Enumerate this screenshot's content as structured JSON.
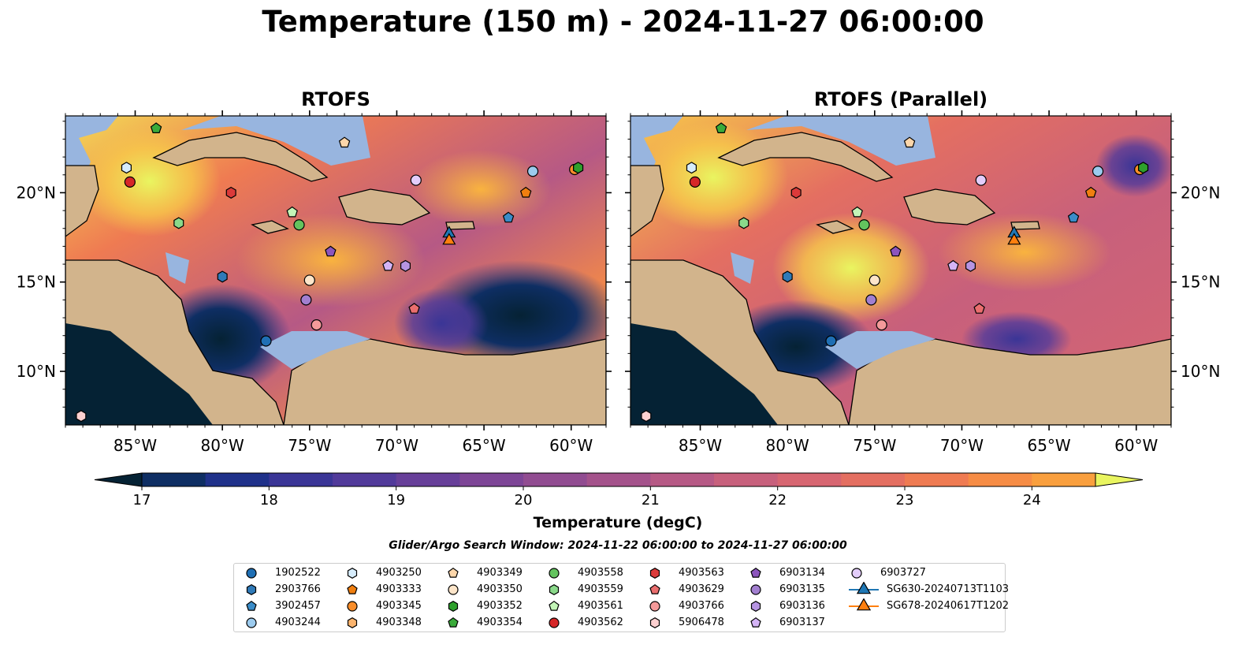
{
  "title": "Temperature (150 m) - 2024-11-27 06:00:00",
  "panels": [
    {
      "title": "RTOFS"
    },
    {
      "title": "RTOFS (Parallel)"
    }
  ],
  "map": {
    "lon_range": [
      -89,
      -58
    ],
    "lat_range": [
      7,
      24.3
    ],
    "lon_ticks": [
      "85°W",
      "80°W",
      "75°W",
      "70°W",
      "65°W",
      "60°W"
    ],
    "lat_ticks": [
      "20°N",
      "15°N",
      "10°N"
    ],
    "colors": {
      "land": "#d2b48c",
      "shelf": "#98b5df",
      "deep_cold": "#062235",
      "coast": "#000000"
    }
  },
  "colorbar": {
    "label": "Temperature (degC)",
    "ticks": [
      "17",
      "18",
      "19",
      "20",
      "21",
      "22",
      "23",
      "24"
    ],
    "range": [
      17,
      24.5
    ],
    "colors": [
      "#052234",
      "#0e2e63",
      "#1f318a",
      "#3a3596",
      "#513a9a",
      "#673f99",
      "#7d4596",
      "#914c91",
      "#a4528b",
      "#b65985",
      "#c7607c",
      "#d76671",
      "#e46f61",
      "#ef7b52",
      "#f68c45",
      "#f99f3e",
      "#f9b33f",
      "#f7c84a",
      "#f3dc54",
      "#e9f560"
    ]
  },
  "search_window": "Glider/Argo Search Window: 2024-11-22 06:00:00 to 2024-11-27 06:00:00",
  "observations": [
    {
      "id": "1902522",
      "marker": "circle",
      "color": "#1f6fb4",
      "lon": -77.5,
      "lat": 11.7
    },
    {
      "id": "2903766",
      "marker": "hexagon",
      "color": "#2f7ab8",
      "lon": -80.0,
      "lat": 15.3
    },
    {
      "id": "3902457",
      "marker": "pentagon",
      "color": "#3a8cc8",
      "lon": -63.6,
      "lat": 18.6
    },
    {
      "id": "4903244",
      "marker": "circle",
      "color": "#9ccbee",
      "lon": -62.2,
      "lat": 21.2
    },
    {
      "id": "4903250",
      "marker": "hexagon",
      "color": "#d6ecfb",
      "lon": -85.5,
      "lat": 21.4
    },
    {
      "id": "4903333",
      "marker": "pentagon",
      "color": "#f07f10",
      "lon": -62.6,
      "lat": 20.0
    },
    {
      "id": "4903345",
      "marker": "circle",
      "color": "#f98d2a",
      "lon": -59.8,
      "lat": 21.3
    },
    {
      "id": "4903348",
      "marker": "hexagon",
      "color": "#fbb46e",
      "lon": -59.6,
      "lat": 21.4
    },
    {
      "id": "4903349",
      "marker": "pentagon",
      "color": "#fcd6aa",
      "lon": -73.0,
      "lat": 22.8
    },
    {
      "id": "4903350",
      "marker": "circle",
      "color": "#fde5c9",
      "lon": -75.0,
      "lat": 15.1
    },
    {
      "id": "4903352",
      "marker": "hexagon",
      "color": "#2ea02c",
      "lon": -59.6,
      "lat": 21.4
    },
    {
      "id": "4903354",
      "marker": "pentagon",
      "color": "#3aab3a",
      "lon": -83.8,
      "lat": 23.6
    },
    {
      "id": "4903558",
      "marker": "circle",
      "color": "#63c35e",
      "lon": -75.6,
      "lat": 18.2
    },
    {
      "id": "4903559",
      "marker": "hexagon",
      "color": "#8ad98a",
      "lon": -82.5,
      "lat": 18.3
    },
    {
      "id": "4903561",
      "marker": "pentagon",
      "color": "#c3f5b7",
      "lon": -76.0,
      "lat": 18.9
    },
    {
      "id": "4903562",
      "marker": "circle",
      "color": "#d62728",
      "lon": -85.3,
      "lat": 20.6
    },
    {
      "id": "4903563",
      "marker": "hexagon",
      "color": "#db3a3a",
      "lon": -79.5,
      "lat": 20.0
    },
    {
      "id": "4903629",
      "marker": "pentagon",
      "color": "#ea6e6e",
      "lon": -69.0,
      "lat": 13.5
    },
    {
      "id": "4903766",
      "marker": "circle",
      "color": "#f49a9a",
      "lon": -74.6,
      "lat": 12.6
    },
    {
      "id": "5906478",
      "marker": "hexagon",
      "color": "#fdd0d0",
      "lon": -88.1,
      "lat": 7.5
    },
    {
      "id": "6903134",
      "marker": "pentagon",
      "color": "#8c55bd",
      "lon": -73.8,
      "lat": 16.7
    },
    {
      "id": "6903135",
      "marker": "circle",
      "color": "#a27fd0",
      "lon": -75.2,
      "lat": 14.0
    },
    {
      "id": "6903136",
      "marker": "hexagon",
      "color": "#b694e2",
      "lon": -69.5,
      "lat": 15.9
    },
    {
      "id": "6903137",
      "marker": "pentagon",
      "color": "#d4b4f6",
      "lon": -70.5,
      "lat": 15.9
    },
    {
      "id": "6903727",
      "marker": "circle",
      "color": "#e3cdfb",
      "lon": -68.9,
      "lat": 20.7
    },
    {
      "id": "SG630-20240713T1103",
      "marker": "triangle",
      "color": "#1f77b4",
      "lon": -67.0,
      "lat": 17.8
    },
    {
      "id": "SG678-20240617T1202",
      "marker": "triangle",
      "color": "#ff7f0e",
      "lon": -67.0,
      "lat": 17.4
    }
  ]
}
